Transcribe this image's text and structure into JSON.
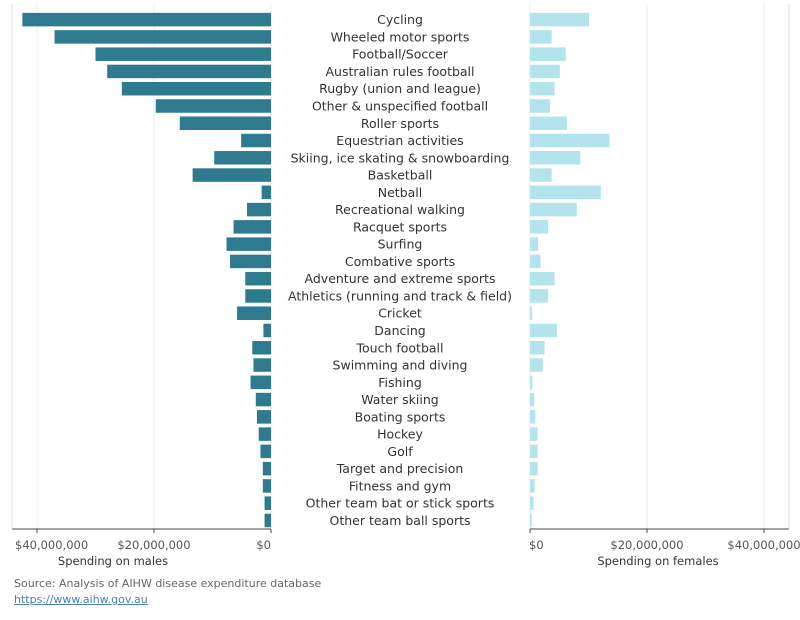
{
  "chart_data": {
    "type": "bar",
    "orientation": "horizontal",
    "layout": "butterfly",
    "categories": [
      "Cycling",
      "Wheeled motor sports",
      "Football/Soccer",
      "Australian rules football",
      "Rugby (union and league)",
      "Other & unspecified football",
      "Roller sports",
      "Equestrian activities",
      "Skiing, ice skating & snowboarding",
      "Basketball",
      "Netball",
      "Recreational walking",
      "Racquet sports",
      "Surfing",
      "Combative sports",
      "Adventure and extreme sports",
      "Athletics (running and track & field)",
      "Cricket",
      "Dancing",
      "Touch football",
      "Swimming and diving",
      "Fishing",
      "Water skiing",
      "Boating sports",
      "Hockey",
      "Golf",
      "Target and precision",
      "Fitness and gym",
      "Other team bat or stick sports",
      "Other team ball sports"
    ],
    "series": [
      {
        "name": "Spending on males",
        "color": "#2e7a8f",
        "values": [
          42500000,
          37000000,
          30000000,
          28000000,
          25500000,
          19700000,
          15600000,
          5100000,
          9700000,
          13400000,
          1600000,
          4100000,
          6400000,
          7600000,
          7000000,
          4400000,
          4400000,
          5800000,
          1300000,
          3200000,
          3000000,
          3500000,
          2600000,
          2400000,
          2100000,
          1800000,
          1400000,
          1400000,
          1100000,
          1100000
        ]
      },
      {
        "name": "Spending on females",
        "color": "#b3e3ec",
        "values": [
          10100000,
          3700000,
          6100000,
          5100000,
          4200000,
          3400000,
          6300000,
          13600000,
          8600000,
          3700000,
          12100000,
          8000000,
          3100000,
          1400000,
          1800000,
          4200000,
          3100000,
          350000,
          4600000,
          2500000,
          2200000,
          400000,
          700000,
          900000,
          1300000,
          1300000,
          1300000,
          800000,
          600000,
          300000
        ]
      }
    ],
    "axes": {
      "male": {
        "ticks": [
          "$40,000,000",
          "$20,000,000",
          "$0"
        ],
        "label": "Spending on males",
        "range": [
          0,
          44000000
        ],
        "reversed": true
      },
      "female": {
        "ticks": [
          "$0",
          "$20,000,000",
          "$40,000,000"
        ],
        "label": "Spending on females",
        "range": [
          0,
          44000000
        ]
      }
    },
    "tick_values": [
      0,
      20000000,
      40000000
    ],
    "grid": true,
    "legend": "none"
  },
  "footer": {
    "source": "Source: Analysis of AIHW disease expenditure database",
    "link": "https://www.aihw.gov.au"
  }
}
